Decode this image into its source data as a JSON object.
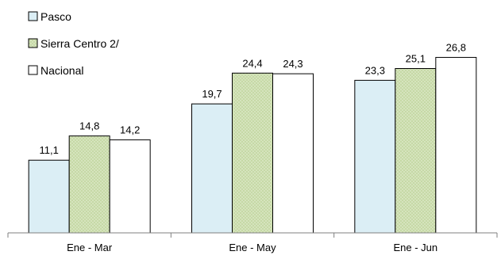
{
  "chart_data": {
    "type": "bar",
    "title": "",
    "xlabel": "",
    "ylabel": "",
    "categories": [
      "Ene - Mar",
      "Ene - May",
      "Ene - Jun"
    ],
    "series": [
      {
        "name": "Pasco",
        "values": [
          11.1,
          19.7,
          23.3
        ],
        "labels": [
          "11,1",
          "19,7",
          "23,3"
        ],
        "color": "#dbeef5",
        "pattern": "none"
      },
      {
        "name": "Sierra Centro 2/",
        "values": [
          14.8,
          24.4,
          25.1
        ],
        "labels": [
          "14,8",
          "24,4",
          "25,1"
        ],
        "color": "#c6d9a6",
        "pattern": "dots"
      },
      {
        "name": "Nacional",
        "values": [
          14.2,
          24.3,
          26.8
        ],
        "labels": [
          "14,2",
          "24,3",
          "26,8"
        ],
        "color": "#ffffff",
        "pattern": "none"
      }
    ],
    "ylim": [
      0,
      30
    ],
    "legend_position": "top-left",
    "grid": false,
    "axis_color": "#7f7f7f",
    "bar_outline_color": "#000000"
  }
}
